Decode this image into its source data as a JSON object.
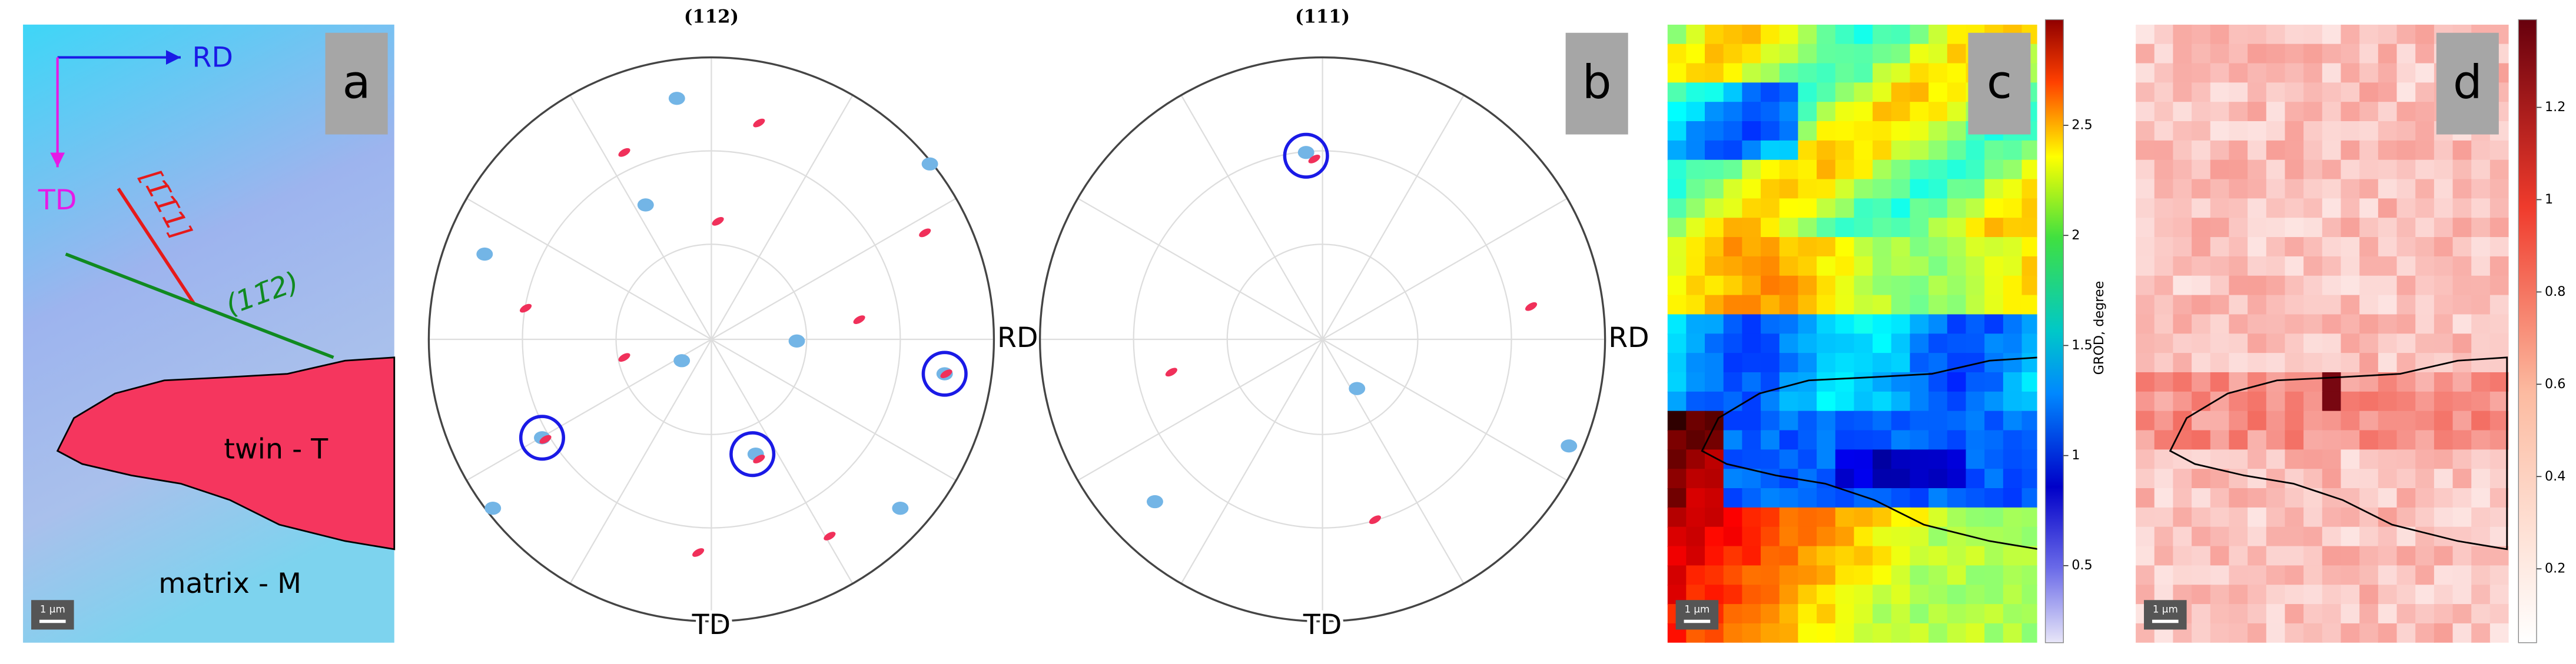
{
  "panel_a": {
    "label": "a",
    "rd": "RD",
    "td": "TD",
    "direction": "[1̄1̄1]",
    "plane": "(11̄2)",
    "twin": "twin - T",
    "matrix": "matrix - M",
    "scale_bar": "1 μm"
  },
  "panel_b": {
    "label": "b",
    "pole_figures": [
      {
        "title": "(112)",
        "rd": "RD",
        "td": "TD"
      },
      {
        "title": "(111)",
        "rd": "RD",
        "td": "TD"
      }
    ]
  },
  "panel_c": {
    "label": "c",
    "scale_bar": "1 μm",
    "colorbar": {
      "label": "GROD, degree",
      "lim": [
        0.15,
        2.98
      ],
      "ticks": [
        0.5,
        1,
        1.5,
        2,
        2.5
      ]
    }
  },
  "panel_d": {
    "label": "d",
    "scale_bar": "1 μm",
    "colorbar": {
      "lim": [
        0.04,
        1.39
      ],
      "ticks": [
        0.2,
        0.4,
        0.6,
        0.8,
        1,
        1.2
      ]
    }
  }
}
